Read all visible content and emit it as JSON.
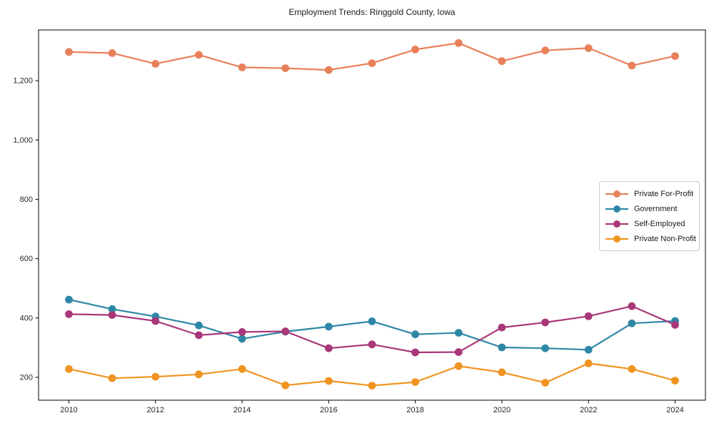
{
  "chart_data": {
    "type": "line",
    "title": "Employment Trends: Ringgold County, Iowa",
    "xlabel": "",
    "ylabel": "",
    "grid": false,
    "legend_position": "center-right",
    "xlim": [
      2009.3,
      2024.7
    ],
    "ylim": [
      123,
      1371
    ],
    "x": [
      2010,
      2011,
      2012,
      2013,
      2014,
      2015,
      2016,
      2017,
      2018,
      2019,
      2020,
      2021,
      2022,
      2023,
      2024
    ],
    "x_ticks": [
      2010,
      2012,
      2014,
      2016,
      2018,
      2020,
      2022,
      2024
    ],
    "x_tick_labels": [
      "2010",
      "2012",
      "2014",
      "2016",
      "2018",
      "2020",
      "2022",
      "2024"
    ],
    "y_ticks": [
      200,
      400,
      600,
      800,
      1000,
      1200
    ],
    "y_tick_labels": [
      "200",
      "400",
      "600",
      "800",
      "1,000",
      "1,200"
    ],
    "series": [
      {
        "name": "Private For-Profit",
        "color": "#E8805A",
        "values": [
          1297,
          1293,
          1257,
          1287,
          1245,
          1242,
          1236,
          1259,
          1305,
          1327,
          1266,
          1302,
          1310,
          1251,
          1283
        ]
      },
      {
        "name": "Government",
        "color": "#2E87A6",
        "values": [
          462,
          430,
          405,
          375,
          330,
          354,
          371,
          389,
          345,
          350,
          301,
          298,
          293,
          382,
          390
        ]
      },
      {
        "name": "Self-Employed",
        "color": "#A93779",
        "values": [
          413,
          410,
          390,
          342,
          353,
          355,
          298,
          311,
          284,
          285,
          368,
          385,
          406,
          440,
          377
        ]
      },
      {
        "name": "Private Non-Profit",
        "color": "#EF9420",
        "values": [
          228,
          197,
          202,
          210,
          228,
          173,
          188,
          172,
          184,
          238,
          217,
          182,
          247,
          228,
          189
        ]
      }
    ]
  }
}
